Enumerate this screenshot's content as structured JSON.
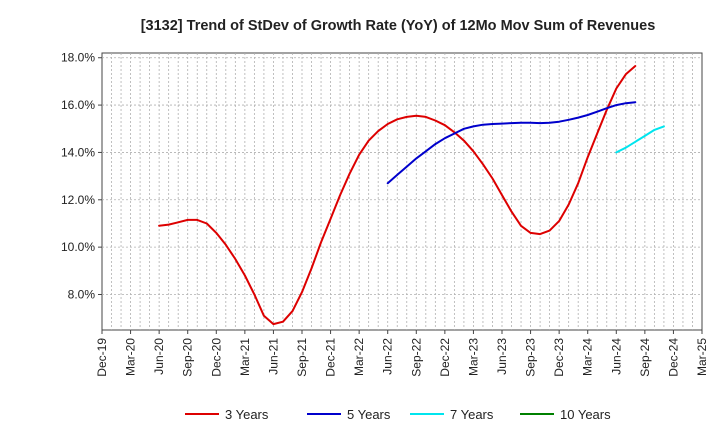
{
  "chart_data": {
    "type": "line",
    "title": "[3132]  Trend of StDev of Growth Rate (YoY) of 12Mo Mov Sum of Revenues",
    "xlabel": "",
    "ylabel": "",
    "ylim": [
      6.5,
      18.2
    ],
    "y_ticks": [
      {
        "value": 8,
        "label": "8.0%"
      },
      {
        "value": 10,
        "label": "10.0%"
      },
      {
        "value": 12,
        "label": "12.0%"
      },
      {
        "value": 14,
        "label": "14.0%"
      },
      {
        "value": 16,
        "label": "16.0%"
      },
      {
        "value": 18,
        "label": "18.0%"
      }
    ],
    "x_ticks": [
      "Dec-19",
      "Mar-20",
      "Jun-20",
      "Sep-20",
      "Dec-20",
      "Mar-21",
      "Jun-21",
      "Sep-21",
      "Dec-21",
      "Mar-22",
      "Jun-22",
      "Sep-22",
      "Dec-22",
      "Mar-23",
      "Jun-23",
      "Sep-23",
      "Dec-23",
      "Mar-24",
      "Jun-24",
      "Sep-24",
      "Dec-24",
      "Mar-25"
    ],
    "x_start": "Dec-19",
    "x_end": "Mar-25",
    "legend_position": "bottom",
    "grid": true,
    "series": [
      {
        "name": "3 Years",
        "color": "#dd0000",
        "start": "Jun-20",
        "values": [
          10.9,
          10.95,
          11.05,
          11.15,
          11.15,
          11.0,
          10.6,
          10.1,
          9.5,
          8.8,
          8.0,
          7.1,
          6.75,
          6.85,
          7.3,
          8.1,
          9.1,
          10.2,
          11.2,
          12.2,
          13.1,
          13.9,
          14.5,
          14.9,
          15.2,
          15.4,
          15.5,
          15.55,
          15.5,
          15.35,
          15.15,
          14.85,
          14.5,
          14.05,
          13.5,
          12.9,
          12.2,
          11.5,
          10.9,
          10.6,
          10.55,
          10.7,
          11.1,
          11.8,
          12.7,
          13.8,
          14.8,
          15.8,
          16.7,
          17.3,
          17.65
        ]
      },
      {
        "name": "5 Years",
        "color": "#0000cc",
        "start": "Jun-22",
        "values": [
          12.7,
          13.05,
          13.4,
          13.75,
          14.05,
          14.35,
          14.6,
          14.8,
          15.0,
          15.1,
          15.17,
          15.2,
          15.22,
          15.24,
          15.25,
          15.25,
          15.24,
          15.25,
          15.3,
          15.38,
          15.47,
          15.58,
          15.72,
          15.87,
          16.0,
          16.08,
          16.12
        ]
      },
      {
        "name": "7 Years",
        "color": "#00e5ee",
        "start": "Jun-24",
        "values": [
          14.0,
          14.2,
          14.45,
          14.7,
          14.95,
          15.1
        ]
      },
      {
        "name": "10 Years",
        "color": "#008000",
        "start": "Dec-24",
        "values": []
      }
    ]
  }
}
